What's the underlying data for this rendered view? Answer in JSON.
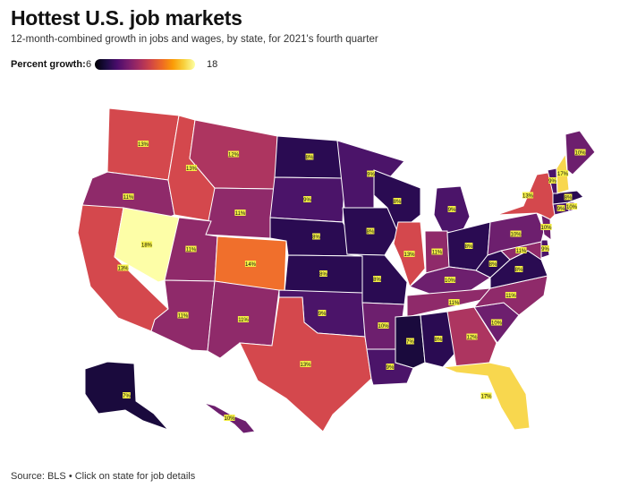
{
  "title": "Hottest U.S. job markets",
  "subtitle": "12-month-combined growth in jobs and wages, by state, for 2021's fourth quarter",
  "legend": {
    "title": "Percent growth:",
    "min": "6",
    "max": "18"
  },
  "source": "Source: BLS • Click on state for job details",
  "colors": {
    "7": "#1a0a3d",
    "8": "#2a0b52",
    "9": "#4b1469",
    "10": "#6d1f6e",
    "11": "#8f2a6a",
    "12": "#ad3560",
    "13": "#d4484d",
    "14": "#f06f2c",
    "17": "#f8d74e",
    "18": "#fdfea7"
  },
  "states": [
    {
      "id": "WA",
      "label": "13%",
      "value": 13
    },
    {
      "id": "OR",
      "label": "11%",
      "value": 11
    },
    {
      "id": "CA",
      "label": "13%",
      "value": 13
    },
    {
      "id": "NV",
      "label": "18%",
      "value": 18
    },
    {
      "id": "ID",
      "label": "13%",
      "value": 13
    },
    {
      "id": "MT",
      "label": "12%",
      "value": 12
    },
    {
      "id": "WY",
      "label": "11%",
      "value": 11
    },
    {
      "id": "UT",
      "label": "11%",
      "value": 11
    },
    {
      "id": "CO",
      "label": "14%",
      "value": 14
    },
    {
      "id": "AZ",
      "label": "11%",
      "value": 11
    },
    {
      "id": "NM",
      "label": "11%",
      "value": 11
    },
    {
      "id": "ND",
      "label": "8%",
      "value": 8
    },
    {
      "id": "SD",
      "label": "9%",
      "value": 9
    },
    {
      "id": "NE",
      "label": "8%",
      "value": 8
    },
    {
      "id": "KS",
      "label": "8%",
      "value": 8
    },
    {
      "id": "OK",
      "label": "9%",
      "value": 9
    },
    {
      "id": "TX",
      "label": "13%",
      "value": 13
    },
    {
      "id": "MN",
      "label": "9%",
      "value": 9
    },
    {
      "id": "IA",
      "label": "8%",
      "value": 8
    },
    {
      "id": "MO",
      "label": "8%",
      "value": 8
    },
    {
      "id": "AR",
      "label": "10%",
      "value": 10
    },
    {
      "id": "LA",
      "label": "9%",
      "value": 9
    },
    {
      "id": "WI",
      "label": "8%",
      "value": 8
    },
    {
      "id": "IL",
      "label": "13%",
      "value": 13
    },
    {
      "id": "MI",
      "label": "9%",
      "value": 9
    },
    {
      "id": "IN",
      "label": "11%",
      "value": 11
    },
    {
      "id": "OH",
      "label": "8%",
      "value": 8
    },
    {
      "id": "KY",
      "label": "10%",
      "value": 10
    },
    {
      "id": "TN",
      "label": "11%",
      "value": 11
    },
    {
      "id": "MS",
      "label": "7%",
      "value": 7
    },
    {
      "id": "AL",
      "label": "8%",
      "value": 8
    },
    {
      "id": "GA",
      "label": "12%",
      "value": 12
    },
    {
      "id": "FL",
      "label": "17%",
      "value": 17
    },
    {
      "id": "SC",
      "label": "10%",
      "value": 10
    },
    {
      "id": "NC",
      "label": "11%",
      "value": 11
    },
    {
      "id": "VA",
      "label": "8%",
      "value": 8
    },
    {
      "id": "WV",
      "label": "8%",
      "value": 8
    },
    {
      "id": "MD",
      "label": "11%",
      "value": 11
    },
    {
      "id": "DE",
      "label": "9%",
      "value": 9
    },
    {
      "id": "PA",
      "label": "10%",
      "value": 10
    },
    {
      "id": "NJ",
      "label": "10%",
      "value": 10
    },
    {
      "id": "NY",
      "label": "13%",
      "value": 13
    },
    {
      "id": "CT",
      "label": "9%",
      "value": 9
    },
    {
      "id": "RI",
      "label": "10%",
      "value": 10
    },
    {
      "id": "MA",
      "label": "8%",
      "value": 8
    },
    {
      "id": "VT",
      "label": "9%",
      "value": 9
    },
    {
      "id": "NH",
      "label": "17%",
      "value": 17
    },
    {
      "id": "ME",
      "label": "10%",
      "value": 10
    },
    {
      "id": "AK",
      "label": "7%",
      "value": 7
    },
    {
      "id": "HI",
      "label": "10%",
      "value": 10
    }
  ]
}
